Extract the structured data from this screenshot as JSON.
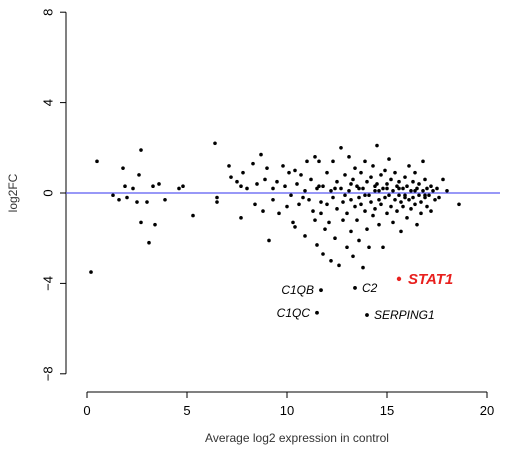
{
  "chart_data": {
    "type": "scatter",
    "xlabel": "Average log2 expression in control",
    "ylabel": "log2FC",
    "xlim": [
      -1,
      20.8
    ],
    "ylim": [
      -8,
      8
    ],
    "xticks": [
      0,
      5,
      10,
      15,
      20
    ],
    "yticks": [
      -8,
      -4,
      0,
      4,
      8
    ],
    "ytick_labels": [
      "−8",
      "−4",
      "0",
      "4",
      "8"
    ],
    "hline": {
      "y": 0,
      "color": "#5b5bf2"
    },
    "point_color": "#000000",
    "highlight_color": "#e8201e",
    "grid": false,
    "points": [
      [
        0.2,
        -3.5
      ],
      [
        0.5,
        1.4
      ],
      [
        1.3,
        -0.1
      ],
      [
        1.6,
        -0.3
      ],
      [
        1.8,
        1.1
      ],
      [
        1.9,
        0.3
      ],
      [
        2.0,
        -0.2
      ],
      [
        2.3,
        0.2
      ],
      [
        2.5,
        -0.4
      ],
      [
        2.6,
        0.8
      ],
      [
        2.7,
        1.9
      ],
      [
        2.7,
        -1.3
      ],
      [
        3.0,
        -0.4
      ],
      [
        3.1,
        -2.2
      ],
      [
        3.3,
        0.3
      ],
      [
        3.4,
        -1.4
      ],
      [
        3.6,
        0.4
      ],
      [
        3.9,
        -0.3
      ],
      [
        4.6,
        0.2
      ],
      [
        4.8,
        0.3
      ],
      [
        5.3,
        -1.0
      ],
      [
        6.4,
        2.2
      ],
      [
        6.5,
        -0.2
      ],
      [
        6.5,
        -0.4
      ],
      [
        7.1,
        1.2
      ],
      [
        7.2,
        0.7
      ],
      [
        7.5,
        0.5
      ],
      [
        7.7,
        0.3
      ],
      [
        7.7,
        -1.1
      ],
      [
        7.8,
        0.9
      ],
      [
        8.0,
        0.2
      ],
      [
        8.3,
        1.3
      ],
      [
        8.4,
        -0.5
      ],
      [
        8.5,
        0.4
      ],
      [
        8.7,
        1.7
      ],
      [
        8.8,
        -0.8
      ],
      [
        8.9,
        0.6
      ],
      [
        9.0,
        1.1
      ],
      [
        9.1,
        -2.1
      ],
      [
        9.3,
        0.2
      ],
      [
        9.3,
        -0.3
      ],
      [
        9.5,
        0.5
      ],
      [
        9.6,
        -0.9
      ],
      [
        9.8,
        1.2
      ],
      [
        9.9,
        0.3
      ],
      [
        10.0,
        -0.6
      ],
      [
        10.1,
        0.9
      ],
      [
        10.2,
        -0.1
      ],
      [
        10.3,
        -1.3
      ],
      [
        10.4,
        1.0
      ],
      [
        10.5,
        0.4
      ],
      [
        10.6,
        -0.5
      ],
      [
        10.7,
        0.8
      ],
      [
        10.8,
        -0.2
      ],
      [
        10.9,
        0.1
      ],
      [
        10.4,
        -1.5
      ],
      [
        10.9,
        -1.9
      ],
      [
        11.0,
        1.4
      ],
      [
        11.1,
        -0.3
      ],
      [
        11.2,
        0.6
      ],
      [
        11.3,
        -0.8
      ],
      [
        11.4,
        1.6
      ],
      [
        11.4,
        -1.2
      ],
      [
        11.5,
        0.2
      ],
      [
        11.5,
        -2.3
      ],
      [
        11.6,
        1.4
      ],
      [
        11.7,
        -0.4
      ],
      [
        11.7,
        -0.9
      ],
      [
        11.8,
        0.3
      ],
      [
        11.8,
        -2.7
      ],
      [
        11.9,
        -1.6
      ],
      [
        12.0,
        0.9
      ],
      [
        12.0,
        -0.5
      ],
      [
        12.1,
        -1.3
      ],
      [
        12.2,
        0.1
      ],
      [
        12.2,
        -3.0
      ],
      [
        12.3,
        1.4
      ],
      [
        12.3,
        -0.2
      ],
      [
        12.4,
        -2.0
      ],
      [
        12.5,
        0.5
      ],
      [
        12.5,
        -0.7
      ],
      [
        12.6,
        -3.2
      ],
      [
        12.7,
        2.0
      ],
      [
        12.7,
        0.2
      ],
      [
        12.8,
        -1.2
      ],
      [
        12.8,
        -0.4
      ],
      [
        12.9,
        0.8
      ],
      [
        13.0,
        -0.9
      ],
      [
        13.0,
        -2.4
      ],
      [
        13.1,
        0.1
      ],
      [
        13.1,
        1.6
      ],
      [
        13.2,
        -0.3
      ],
      [
        13.2,
        -1.7
      ],
      [
        13.3,
        0.6
      ],
      [
        13.3,
        -2.8
      ],
      [
        13.4,
        -0.6
      ],
      [
        13.4,
        1.1
      ],
      [
        13.5,
        0.3
      ],
      [
        13.5,
        -1.2
      ],
      [
        13.6,
        -0.2
      ],
      [
        13.6,
        -2.1
      ],
      [
        13.7,
        0.9
      ],
      [
        13.7,
        -0.5
      ],
      [
        13.8,
        0.2
      ],
      [
        13.8,
        -3.3
      ],
      [
        13.9,
        1.4
      ],
      [
        13.9,
        -0.8
      ],
      [
        14.0,
        0.5
      ],
      [
        14.0,
        -1.6
      ],
      [
        14.1,
        -0.1
      ],
      [
        14.1,
        -2.4
      ],
      [
        14.2,
        0.7
      ],
      [
        14.2,
        -0.4
      ],
      [
        14.3,
        1.2
      ],
      [
        14.3,
        -1.0
      ],
      [
        14.4,
        0.1
      ],
      [
        14.4,
        -0.7
      ],
      [
        14.5,
        0.4
      ],
      [
        14.5,
        2.1
      ],
      [
        14.6,
        -0.3
      ],
      [
        14.6,
        -1.4
      ],
      [
        14.7,
        0.8
      ],
      [
        14.7,
        -0.5
      ],
      [
        14.8,
        0.2
      ],
      [
        14.8,
        -2.4
      ],
      [
        14.9,
        -0.2
      ],
      [
        14.9,
        1.0
      ],
      [
        15.0,
        0.4
      ],
      [
        15.0,
        -0.9
      ],
      [
        15.1,
        -0.1
      ],
      [
        15.1,
        1.5
      ],
      [
        15.2,
        0.6
      ],
      [
        15.2,
        -0.6
      ],
      [
        15.3,
        0.1
      ],
      [
        15.3,
        -1.3
      ],
      [
        15.4,
        -0.3
      ],
      [
        15.4,
        0.9
      ],
      [
        15.5,
        0.3
      ],
      [
        15.5,
        -0.8
      ],
      [
        15.6,
        -0.1
      ],
      [
        15.6,
        0.5
      ],
      [
        15.7,
        -0.4
      ],
      [
        15.7,
        -1.7
      ],
      [
        15.8,
        0.2
      ],
      [
        15.8,
        -0.6
      ],
      [
        15.9,
        0.7
      ],
      [
        15.9,
        -0.2
      ],
      [
        16.0,
        0.3
      ],
      [
        16.0,
        -1.1
      ],
      [
        16.1,
        -0.3
      ],
      [
        16.1,
        1.2
      ],
      [
        16.2,
        0.1
      ],
      [
        16.2,
        -0.7
      ],
      [
        16.3,
        0.5
      ],
      [
        16.3,
        -0.2
      ],
      [
        16.4,
        -0.5
      ],
      [
        16.4,
        0.9
      ],
      [
        16.5,
        0.2
      ],
      [
        16.5,
        -1.4
      ],
      [
        16.6,
        -0.1
      ],
      [
        16.6,
        0.4
      ],
      [
        16.7,
        -0.4
      ],
      [
        16.7,
        -0.9
      ],
      [
        16.8,
        0.1
      ],
      [
        16.8,
        1.4
      ],
      [
        16.9,
        -0.2
      ],
      [
        16.9,
        0.6
      ],
      [
        17.0,
        0.2
      ],
      [
        17.0,
        -0.6
      ],
      [
        17.1,
        -0.1
      ],
      [
        17.2,
        0.3
      ],
      [
        17.2,
        -0.8
      ],
      [
        17.3,
        0.1
      ],
      [
        17.4,
        -0.3
      ],
      [
        17.5,
        0.2
      ],
      [
        17.6,
        -0.2
      ],
      [
        17.8,
        0.6
      ],
      [
        18.0,
        0.1
      ],
      [
        18.6,
        -0.5
      ],
      [
        11.6,
        0.3
      ],
      [
        12.4,
        0.2
      ],
      [
        13.2,
        0.4
      ],
      [
        13.9,
        -0.1
      ],
      [
        14.4,
        0.3
      ],
      [
        15.6,
        0.2
      ],
      [
        16.4,
        0.1
      ],
      [
        12.9,
        -0.1
      ],
      [
        13.6,
        0.2
      ],
      [
        14.6,
        0.1
      ],
      [
        15.0,
        0.2
      ],
      [
        15.9,
        -0.1
      ],
      [
        16.9,
        -0.1
      ]
    ],
    "labeled_points": [
      {
        "label": "C1QB",
        "x": 11.7,
        "y": -4.3,
        "side": "left"
      },
      {
        "label": "C2",
        "x": 13.4,
        "y": -4.2,
        "side": "right"
      },
      {
        "label": "C1QC",
        "x": 11.5,
        "y": -5.3,
        "side": "left"
      },
      {
        "label": "SERPING1",
        "x": 14.0,
        "y": -5.4,
        "side": "right"
      }
    ],
    "highlighted_point": {
      "label": "STAT1",
      "x": 15.6,
      "y": -3.8,
      "side": "right"
    }
  }
}
